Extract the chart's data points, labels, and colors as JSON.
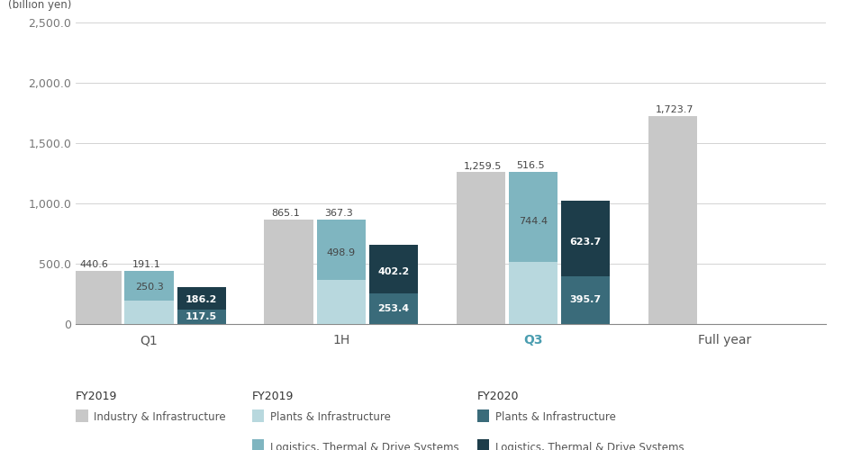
{
  "ylabel": "(billion yen)",
  "ylim": [
    0,
    2500
  ],
  "yticks": [
    0,
    500,
    1000,
    1500,
    2000,
    2500
  ],
  "ytick_labels": [
    "0",
    "500.0",
    "1,000.0",
    "1,500.0",
    "2,000.0",
    "2,500.0"
  ],
  "groups": [
    "Q1",
    "1H",
    "Q3",
    "Full year"
  ],
  "group_label_colors": [
    "#555555",
    "#555555",
    "#4a9db0",
    "#555555"
  ],
  "bar_width": 0.28,
  "groups_data": [
    {
      "name": "Q1",
      "fy2019_ii": 440.6,
      "fy2019_pi": 191.1,
      "fy2019_ltds": 250.3,
      "fy2020_pi": 117.5,
      "fy2020_ltds": 186.2
    },
    {
      "name": "1H",
      "fy2019_ii": 865.1,
      "fy2019_pi": 367.3,
      "fy2019_ltds": 498.9,
      "fy2020_pi": 253.4,
      "fy2020_ltds": 402.2
    },
    {
      "name": "Q3",
      "fy2019_ii": 1259.5,
      "fy2019_pi": 516.5,
      "fy2019_ltds": 744.4,
      "fy2020_pi": 395.7,
      "fy2020_ltds": 623.7
    },
    {
      "name": "Full year",
      "fy2019_ii": 1723.7,
      "fy2019_pi": null,
      "fy2019_ltds": null,
      "fy2020_pi": null,
      "fy2020_ltds": null
    }
  ],
  "annot_data": [
    {
      "fy2019_ii": "440.6",
      "fy2019_pi": "191.1",
      "fy2019_ltds": "250.3",
      "fy2020_pi": "117.5",
      "fy2020_ltds": "186.2"
    },
    {
      "fy2019_ii": "865.1",
      "fy2019_pi": "367.3",
      "fy2019_ltds": "498.9",
      "fy2020_pi": "253.4",
      "fy2020_ltds": "402.2"
    },
    {
      "fy2019_ii": "1,259.5",
      "fy2019_pi": "516.5",
      "fy2019_ltds": "744.4",
      "fy2020_pi": "395.7",
      "fy2020_ltds": "623.7"
    },
    {
      "fy2019_ii": "1,723.7",
      "fy2019_pi": null,
      "fy2019_ltds": null,
      "fy2020_pi": null,
      "fy2020_ltds": null
    }
  ],
  "colors": {
    "fy2019_ii": "#c8c8c8",
    "fy2019_pi": "#b8d8de",
    "fy2019_ltds": "#7fb5c0",
    "fy2020_pi": "#3a6b7a",
    "fy2020_ltds": "#1d3d4a"
  },
  "background": "#ffffff",
  "grid_color": "#cccccc",
  "font_size_ticks": 9,
  "font_size_annot": 8,
  "font_size_xticks": 10,
  "font_size_legend_header": 9,
  "font_size_legend": 8.5
}
